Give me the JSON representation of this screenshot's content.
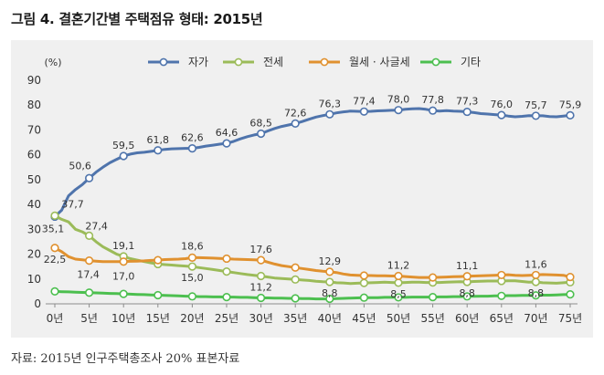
{
  "figure": {
    "title": "그림 4. 결혼기간별 주택점유 형태: 2015년",
    "source": "자료: 2015년 인구주택총조사 20% 표본자료"
  },
  "chart_data": {
    "type": "line",
    "ylabel": "(%)",
    "xlabel": "",
    "x": [
      0,
      1,
      2,
      3,
      4,
      5,
      6,
      7,
      8,
      9,
      10,
      11,
      12,
      13,
      14,
      15,
      16,
      17,
      18,
      19,
      20,
      21,
      22,
      23,
      24,
      25,
      26,
      27,
      28,
      29,
      30,
      31,
      32,
      33,
      34,
      35,
      36,
      37,
      38,
      39,
      40,
      41,
      42,
      43,
      44,
      45,
      46,
      47,
      48,
      49,
      50,
      51,
      52,
      53,
      54,
      55,
      56,
      57,
      58,
      59,
      60,
      61,
      62,
      63,
      64,
      65,
      66,
      67,
      68,
      69,
      70,
      71,
      72,
      73,
      74,
      75
    ],
    "x_ticks": [
      0,
      5,
      10,
      15,
      20,
      25,
      30,
      35,
      40,
      45,
      50,
      55,
      60,
      65,
      70,
      75
    ],
    "x_tick_labels": [
      "0년",
      "5년",
      "10년",
      "15년",
      "20년",
      "25년",
      "30년",
      "35년",
      "40년",
      "45년",
      "50년",
      "55년",
      "60년",
      "65년",
      "70년",
      "75년"
    ],
    "ylim": [
      0,
      90
    ],
    "y_ticks": [
      0,
      10,
      20,
      30,
      40,
      50,
      60,
      70,
      80,
      90
    ],
    "grid": false,
    "legend_position": "top",
    "series": [
      {
        "name": "자가",
        "color": "#4f74ac",
        "values": [
          35.1,
          37.7,
          43.5,
          46.0,
          48.0,
          50.6,
          53.0,
          55.0,
          56.8,
          58.2,
          59.5,
          60.3,
          60.8,
          61.0,
          61.4,
          61.8,
          62.2,
          62.4,
          62.5,
          62.6,
          62.6,
          63.0,
          63.5,
          63.9,
          64.3,
          64.6,
          65.4,
          66.4,
          67.3,
          68.0,
          68.5,
          69.6,
          70.6,
          71.4,
          72.0,
          72.6,
          73.4,
          74.3,
          75.2,
          75.8,
          76.3,
          76.9,
          77.3,
          77.6,
          77.5,
          77.4,
          77.5,
          77.7,
          77.8,
          77.9,
          78.0,
          78.3,
          78.5,
          78.6,
          78.3,
          77.8,
          77.6,
          77.8,
          77.6,
          77.5,
          77.3,
          77.0,
          76.6,
          76.4,
          76.2,
          76.0,
          75.6,
          75.3,
          75.5,
          75.8,
          75.7,
          75.7,
          75.4,
          75.3,
          75.6,
          75.9
        ],
        "labels": [
          {
            "x": 0,
            "text": "35,1"
          },
          {
            "x": 1,
            "text": "37,7"
          },
          {
            "x": 5,
            "text": "50,6"
          },
          {
            "x": 10,
            "text": "59,5"
          },
          {
            "x": 15,
            "text": "61,8"
          },
          {
            "x": 20,
            "text": "62,6"
          },
          {
            "x": 25,
            "text": "64,6"
          },
          {
            "x": 30,
            "text": "68,5"
          },
          {
            "x": 35,
            "text": "72,6"
          },
          {
            "x": 40,
            "text": "76,3"
          },
          {
            "x": 45,
            "text": "77,4"
          },
          {
            "x": 50,
            "text": "78,0"
          },
          {
            "x": 55,
            "text": "77,8"
          },
          {
            "x": 60,
            "text": "77,3"
          },
          {
            "x": 65,
            "text": "76,0"
          },
          {
            "x": 70,
            "text": "75,7"
          },
          {
            "x": 75,
            "text": "75,9"
          }
        ]
      },
      {
        "name": "전세",
        "color": "#9bbb59",
        "values": [
          35.5,
          34.0,
          33.0,
          30.0,
          29.0,
          27.4,
          25.0,
          23.0,
          21.5,
          20.0,
          19.1,
          18.2,
          17.6,
          17.0,
          16.5,
          16.0,
          15.8,
          15.6,
          15.4,
          15.2,
          15.0,
          14.6,
          14.2,
          13.8,
          13.4,
          13.0,
          12.6,
          12.2,
          11.8,
          11.5,
          11.2,
          10.8,
          10.4,
          10.2,
          10.0,
          9.8,
          9.6,
          9.4,
          9.1,
          8.9,
          8.8,
          8.5,
          8.4,
          8.2,
          8.3,
          8.4,
          8.5,
          8.6,
          8.7,
          8.6,
          8.5,
          8.6,
          8.7,
          8.7,
          8.6,
          8.6,
          8.6,
          8.7,
          8.8,
          8.9,
          8.8,
          9.0,
          9.1,
          9.2,
          9.2,
          9.2,
          9.3,
          9.3,
          9.0,
          8.7,
          8.8,
          8.5,
          8.4,
          8.3,
          8.5,
          8.7
        ],
        "labels": [
          {
            "x": 5,
            "text": "27,4"
          },
          {
            "x": 10,
            "text": "19,1"
          },
          {
            "x": 20,
            "text": "15,0"
          },
          {
            "x": 30,
            "text": "11,2"
          },
          {
            "x": 40,
            "text": "8,8"
          },
          {
            "x": 50,
            "text": "8,5"
          },
          {
            "x": 60,
            "text": "8,8"
          },
          {
            "x": 70,
            "text": "8,8"
          }
        ]
      },
      {
        "name": "월세 · 사글세",
        "color": "#e0912f",
        "values": [
          22.5,
          21.0,
          19.0,
          18.0,
          17.7,
          17.4,
          17.2,
          17.0,
          17.0,
          17.0,
          17.0,
          17.1,
          17.2,
          17.3,
          17.5,
          17.6,
          17.8,
          17.9,
          18.0,
          18.2,
          18.6,
          18.6,
          18.5,
          18.4,
          18.3,
          18.2,
          18.0,
          17.9,
          17.8,
          17.7,
          17.6,
          16.8,
          16.0,
          15.4,
          15.0,
          14.6,
          14.2,
          13.8,
          13.4,
          13.1,
          12.9,
          12.6,
          12.0,
          11.6,
          11.5,
          11.4,
          11.4,
          11.3,
          11.3,
          11.2,
          11.2,
          11.0,
          10.8,
          10.6,
          10.6,
          10.6,
          10.7,
          10.8,
          10.9,
          11.0,
          11.1,
          11.2,
          11.3,
          11.4,
          11.5,
          11.6,
          11.7,
          11.5,
          11.4,
          11.5,
          11.6,
          11.8,
          11.7,
          11.6,
          11.5,
          10.8
        ],
        "labels": [
          {
            "x": 0,
            "text": "22,5"
          },
          {
            "x": 5,
            "text": "17,4"
          },
          {
            "x": 10,
            "text": "17,0"
          },
          {
            "x": 20,
            "text": "18,6"
          },
          {
            "x": 30,
            "text": "17,6"
          },
          {
            "x": 40,
            "text": "12,9"
          },
          {
            "x": 50,
            "text": "11,2"
          },
          {
            "x": 60,
            "text": "11,1"
          },
          {
            "x": 70,
            "text": "11,6"
          }
        ]
      },
      {
        "name": "기타",
        "color": "#4cbf4f",
        "values": [
          5.0,
          4.9,
          4.8,
          4.7,
          4.6,
          4.5,
          4.4,
          4.3,
          4.2,
          4.1,
          4.0,
          3.9,
          3.8,
          3.7,
          3.6,
          3.5,
          3.4,
          3.3,
          3.2,
          3.1,
          3.0,
          2.9,
          2.9,
          2.8,
          2.8,
          2.7,
          2.7,
          2.6,
          2.6,
          2.5,
          2.4,
          2.4,
          2.3,
          2.3,
          2.2,
          2.2,
          2.1,
          2.1,
          2.0,
          2.0,
          2.0,
          2.1,
          2.2,
          2.3,
          2.4,
          2.5,
          2.5,
          2.5,
          2.6,
          2.6,
          2.6,
          2.6,
          2.7,
          2.7,
          2.7,
          2.7,
          2.8,
          2.8,
          2.9,
          2.9,
          3.0,
          3.0,
          3.1,
          3.1,
          3.2,
          3.2,
          3.3,
          3.3,
          3.4,
          3.4,
          3.4,
          3.5,
          3.5,
          3.6,
          3.7,
          3.8
        ],
        "labels": []
      }
    ]
  }
}
